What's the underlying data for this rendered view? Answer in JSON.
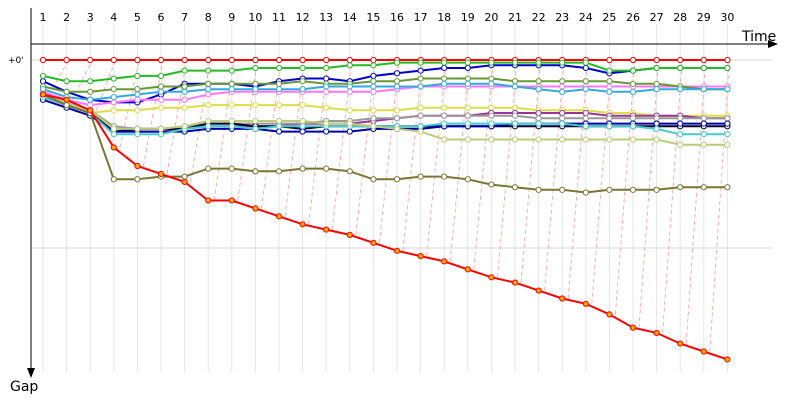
{
  "chart_data": {
    "type": "line",
    "title": "",
    "xlabel": "Time",
    "ylabel": "Gap",
    "y_tick_labels": [
      "+0'"
    ],
    "x": [
      1,
      2,
      3,
      4,
      5,
      6,
      7,
      8,
      9,
      10,
      11,
      12,
      13,
      14,
      15,
      16,
      17,
      18,
      19,
      20,
      21,
      22,
      23,
      24,
      25,
      26,
      27,
      28,
      29,
      30
    ],
    "grid": true,
    "series": [
      {
        "color": "#ff0000",
        "values": [
          0,
          0,
          0,
          0,
          0,
          0,
          0,
          0,
          0,
          0,
          0,
          0,
          0,
          0,
          0,
          0,
          0,
          0,
          0,
          0,
          0,
          0,
          0,
          0,
          0,
          0,
          0,
          0,
          0,
          0
        ]
      },
      {
        "color": "#0000cc",
        "values": [
          0.08,
          0.12,
          0.15,
          0.16,
          0.16,
          0.13,
          0.09,
          0.09,
          0.09,
          0.1,
          0.08,
          0.07,
          0.07,
          0.08,
          0.06,
          0.05,
          0.04,
          0.03,
          0.03,
          0.02,
          0.02,
          0.02,
          0.02,
          0.03,
          0.05,
          0.04,
          0.03,
          0.03,
          0.03,
          0.03
        ]
      },
      {
        "color": "#22bb22",
        "values": [
          0.06,
          0.08,
          0.08,
          0.07,
          0.06,
          0.06,
          0.04,
          0.04,
          0.04,
          0.03,
          0.03,
          0.03,
          0.03,
          0.02,
          0.02,
          0.01,
          0.01,
          0.01,
          0.01,
          0.01,
          0.01,
          0.01,
          0.01,
          0.01,
          0.04,
          0.04,
          0.03,
          0.03,
          0.03,
          0.03
        ]
      },
      {
        "color": "#ff77ff",
        "values": [
          0.12,
          0.15,
          0.17,
          0.16,
          0.15,
          0.15,
          0.15,
          0.13,
          0.12,
          0.12,
          0.12,
          0.12,
          0.12,
          0.12,
          0.12,
          0.11,
          0.1,
          0.1,
          0.1,
          0.1,
          0.1,
          0.1,
          0.1,
          0.1,
          0.1,
          0.1,
          0.1,
          0.1,
          0.1,
          0.1
        ]
      },
      {
        "color": "#669933",
        "values": [
          0.1,
          0.12,
          0.12,
          0.11,
          0.11,
          0.1,
          0.1,
          0.09,
          0.09,
          0.09,
          0.09,
          0.08,
          0.09,
          0.09,
          0.08,
          0.08,
          0.07,
          0.07,
          0.07,
          0.07,
          0.08,
          0.08,
          0.08,
          0.08,
          0.08,
          0.09,
          0.09,
          0.1,
          0.11,
          0.11
        ]
      },
      {
        "color": "#33aadd",
        "values": [
          0.11,
          0.14,
          0.15,
          0.14,
          0.13,
          0.12,
          0.12,
          0.11,
          0.11,
          0.11,
          0.11,
          0.11,
          0.1,
          0.1,
          0.1,
          0.1,
          0.1,
          0.09,
          0.09,
          0.09,
          0.1,
          0.11,
          0.12,
          0.11,
          0.12,
          0.12,
          0.11,
          0.11,
          0.11,
          0.11
        ]
      },
      {
        "color": "#dddd44",
        "values": [
          0.14,
          0.17,
          0.2,
          0.19,
          0.19,
          0.18,
          0.18,
          0.17,
          0.17,
          0.17,
          0.17,
          0.17,
          0.18,
          0.19,
          0.19,
          0.19,
          0.18,
          0.18,
          0.18,
          0.18,
          0.18,
          0.19,
          0.19,
          0.19,
          0.2,
          0.2,
          0.21,
          0.21,
          0.21,
          0.21
        ]
      },
      {
        "color": "#993399",
        "values": [
          0.13,
          0.16,
          0.19,
          0.27,
          0.27,
          0.27,
          0.26,
          0.25,
          0.25,
          0.25,
          0.25,
          0.24,
          0.24,
          0.24,
          0.23,
          0.22,
          0.21,
          0.21,
          0.21,
          0.2,
          0.2,
          0.2,
          0.2,
          0.2,
          0.21,
          0.21,
          0.21,
          0.21,
          0.22,
          0.22
        ]
      },
      {
        "color": "#999999",
        "values": [
          0.13,
          0.16,
          0.19,
          0.25,
          0.26,
          0.26,
          0.25,
          0.24,
          0.24,
          0.24,
          0.24,
          0.24,
          0.23,
          0.23,
          0.22,
          0.22,
          0.21,
          0.21,
          0.21,
          0.21,
          0.21,
          0.22,
          0.22,
          0.22,
          0.22,
          0.22,
          0.22,
          0.22,
          0.22,
          0.22
        ]
      },
      {
        "color": "#000033",
        "values": [
          0.14,
          0.17,
          0.2,
          0.27,
          0.26,
          0.26,
          0.26,
          0.24,
          0.24,
          0.25,
          0.25,
          0.26,
          0.25,
          0.25,
          0.25,
          0.25,
          0.25,
          0.25,
          0.25,
          0.25,
          0.25,
          0.25,
          0.25,
          0.25,
          0.25,
          0.25,
          0.25,
          0.25,
          0.25,
          0.25
        ]
      },
      {
        "color": "#0000aa",
        "values": [
          0.15,
          0.18,
          0.21,
          0.27,
          0.27,
          0.27,
          0.27,
          0.26,
          0.26,
          0.26,
          0.27,
          0.27,
          0.27,
          0.27,
          0.26,
          0.26,
          0.26,
          0.25,
          0.25,
          0.25,
          0.24,
          0.24,
          0.24,
          0.24,
          0.24,
          0.24,
          0.24,
          0.24,
          0.24,
          0.24
        ]
      },
      {
        "color": "#44cccc",
        "values": [
          0.14,
          0.17,
          0.2,
          0.28,
          0.28,
          0.28,
          0.26,
          0.25,
          0.25,
          0.26,
          0.25,
          0.25,
          0.25,
          0.25,
          0.25,
          0.25,
          0.25,
          0.24,
          0.24,
          0.24,
          0.24,
          0.24,
          0.24,
          0.25,
          0.25,
          0.25,
          0.26,
          0.28,
          0.28,
          0.28
        ]
      },
      {
        "color": "#bbcc77",
        "values": [
          0.13,
          0.16,
          0.19,
          0.26,
          0.26,
          0.26,
          0.25,
          0.23,
          0.23,
          0.23,
          0.23,
          0.23,
          0.24,
          0.24,
          0.25,
          0.26,
          0.27,
          0.3,
          0.3,
          0.3,
          0.3,
          0.3,
          0.3,
          0.3,
          0.3,
          0.3,
          0.3,
          0.32,
          0.32,
          0.32
        ]
      },
      {
        "color": "#777733",
        "values": [
          0.13,
          0.17,
          0.2,
          0.45,
          0.45,
          0.44,
          0.44,
          0.41,
          0.41,
          0.42,
          0.42,
          0.41,
          0.41,
          0.42,
          0.45,
          0.45,
          0.44,
          0.44,
          0.45,
          0.47,
          0.48,
          0.49,
          0.49,
          0.5,
          0.49,
          0.49,
          0.49,
          0.48,
          0.48,
          0.48
        ]
      },
      {
        "color": "#ff0000",
        "marker": "#ffaa00",
        "values": [
          0.13,
          0.15,
          0.19,
          0.33,
          0.4,
          0.43,
          0.46,
          0.53,
          0.53,
          0.56,
          0.59,
          0.62,
          0.64,
          0.66,
          0.69,
          0.72,
          0.74,
          0.76,
          0.79,
          0.82,
          0.84,
          0.87,
          0.9,
          0.92,
          0.96,
          1.01,
          1.03,
          1.07,
          1.1,
          1.13
        ]
      }
    ]
  }
}
